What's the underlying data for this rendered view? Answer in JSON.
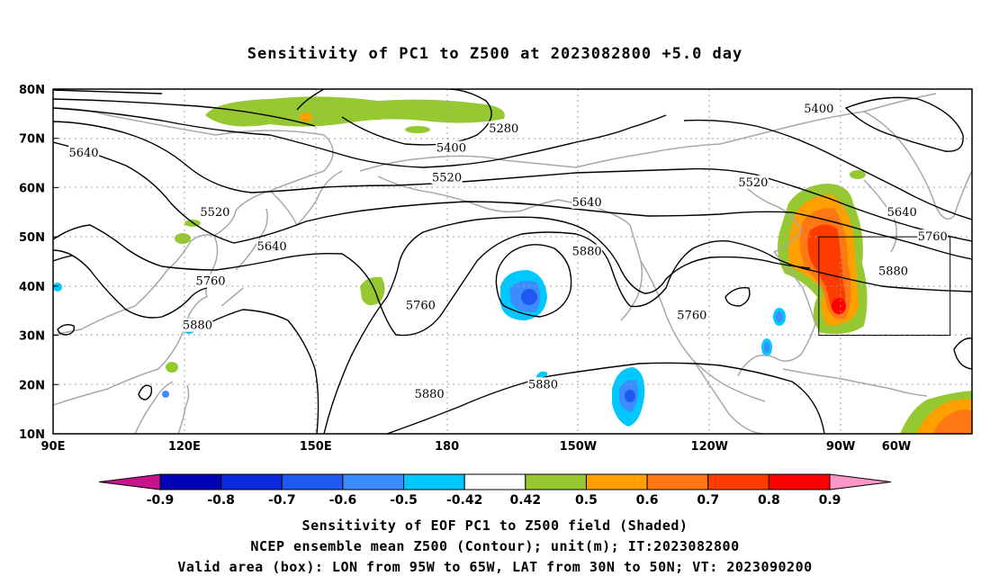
{
  "title": "Sensitivity of PC1 to Z500 at 2023082800 +5.0 day",
  "map": {
    "lon_range": [
      90,
      300
    ],
    "lat_range": [
      10,
      80
    ],
    "lat_ticks": [
      "10N",
      "20N",
      "30N",
      "40N",
      "50N",
      "60N",
      "70N",
      "80N"
    ],
    "lon_ticks": [
      "90E",
      "120E",
      "150E",
      "180",
      "150W",
      "120W",
      "90W",
      "60W"
    ],
    "valid_box": {
      "lon": [
        265,
        295
      ],
      "lat": [
        30,
        50
      ]
    },
    "contour_labels": [
      {
        "text": "5280",
        "lon": 193,
        "lat": 72
      },
      {
        "text": "5400",
        "lon": 181,
        "lat": 68
      },
      {
        "text": "5400",
        "lon": 265,
        "lat": 76
      },
      {
        "text": "5520",
        "lon": 180,
        "lat": 62
      },
      {
        "text": "5520",
        "lon": 250,
        "lat": 61
      },
      {
        "text": "5520",
        "lon": 127,
        "lat": 55
      },
      {
        "text": "5640",
        "lon": 97,
        "lat": 67
      },
      {
        "text": "5640",
        "lon": 140,
        "lat": 48
      },
      {
        "text": "5640",
        "lon": 212,
        "lat": 57
      },
      {
        "text": "5640",
        "lon": 284,
        "lat": 55
      },
      {
        "text": "5760",
        "lon": 126,
        "lat": 41
      },
      {
        "text": "5760",
        "lon": 174,
        "lat": 36
      },
      {
        "text": "5760",
        "lon": 236,
        "lat": 34
      },
      {
        "text": "5760",
        "lon": 291,
        "lat": 50
      },
      {
        "text": "5880",
        "lon": 123,
        "lat": 32
      },
      {
        "text": "5880",
        "lon": 212,
        "lat": 47
      },
      {
        "text": "5880",
        "lon": 176,
        "lat": 18
      },
      {
        "text": "5880",
        "lon": 202,
        "lat": 20
      },
      {
        "text": "5880",
        "lon": 282,
        "lat": 43
      }
    ]
  },
  "colorbar": {
    "labels": [
      "-0.9",
      "-0.8",
      "-0.7",
      "-0.6",
      "-0.5",
      "-0.42",
      "0.42",
      "0.5",
      "0.6",
      "0.7",
      "0.8",
      "0.9"
    ],
    "colors": [
      "#0000b4",
      "#0a28dc",
      "#1e5af0",
      "#3c8cff",
      "#00c8ff",
      "#ffffff",
      "#96c832",
      "#ffa000",
      "#ff7814",
      "#ff3c00",
      "#ff0000"
    ],
    "low_color": "#c8148c",
    "high_color": "#ff96c8"
  },
  "footer": {
    "line1": "Sensitivity of EOF PC1 to Z500 field (Shaded)",
    "line2": "NCEP ensemble mean Z500 (Contour); unit(m); IT:2023082800",
    "line3": "Valid area (box): LON from 95W to 65W, LAT from 30N to 50N; VT: 2023090200"
  }
}
